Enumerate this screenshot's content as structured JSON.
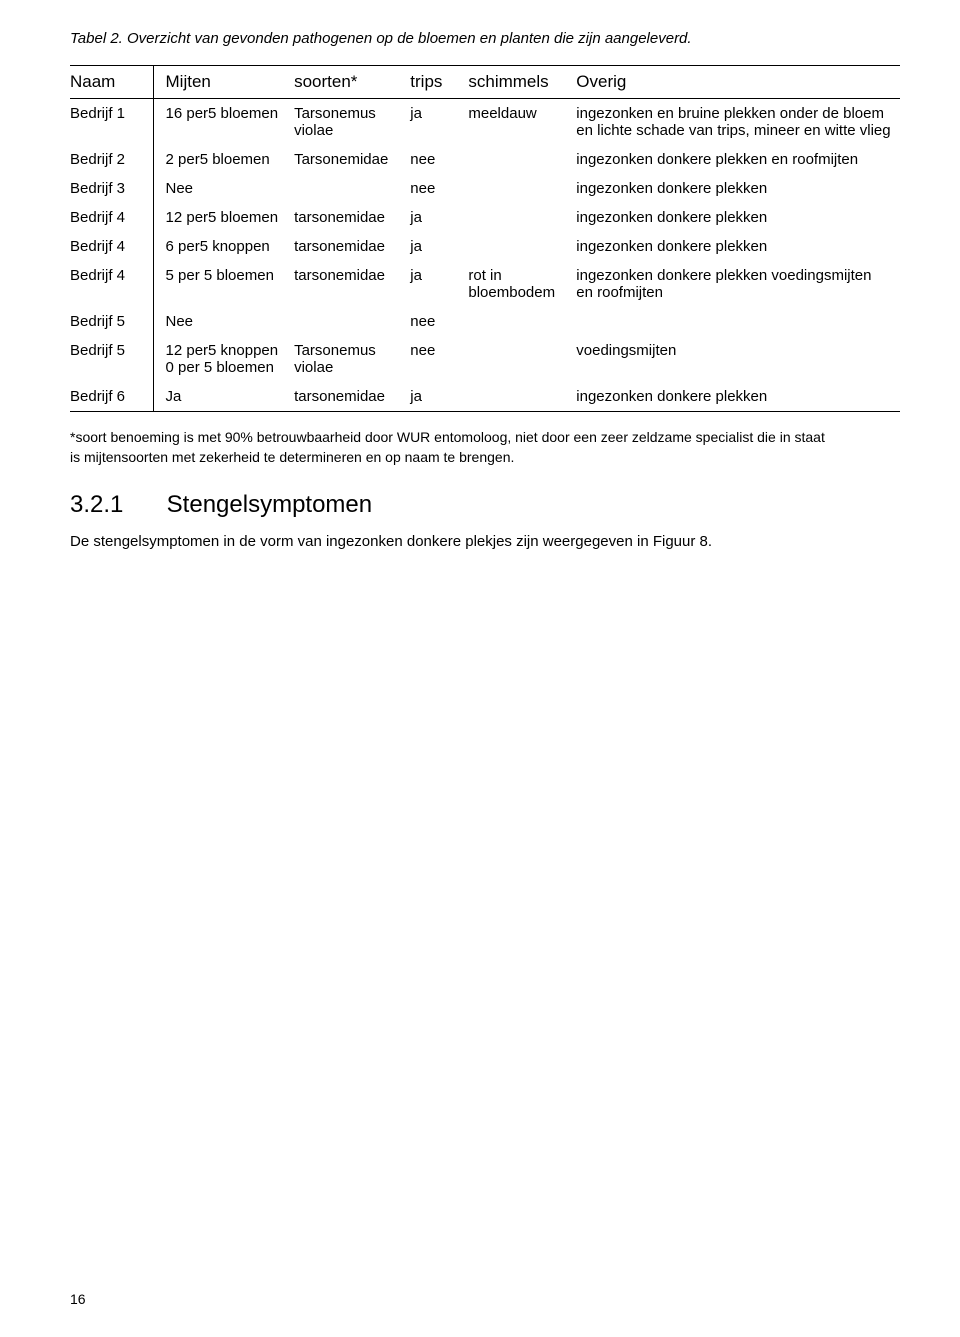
{
  "caption": "Tabel 2. Overzicht van gevonden pathogenen op de bloemen en planten die zijn aangeleverd.",
  "columns": [
    "Naam",
    "Mijten",
    "soorten*",
    "trips",
    "schimmels",
    "Overig"
  ],
  "rows": [
    {
      "naam": "Bedrijf 1",
      "mijten": "16 per5 bloemen",
      "soort": "Tarsonemus violae",
      "trips": "ja",
      "schimmels": "meeldauw",
      "overig": "ingezonken en bruine plekken onder de bloem en lichte schade van trips, mineer en witte vlieg"
    },
    {
      "naam": "Bedrijf 2",
      "mijten": "2 per5 bloemen",
      "soort": "Tarsonemidae",
      "trips": "nee",
      "schimmels": "",
      "overig": "ingezonken donkere plekken en roofmijten"
    },
    {
      "naam": "Bedrijf 3",
      "mijten": "Nee",
      "soort": "",
      "trips": "nee",
      "schimmels": "",
      "overig": "ingezonken donkere plekken"
    },
    {
      "naam": "Bedrijf 4",
      "mijten": "12 per5 bloemen",
      "soort": "tarsonemidae",
      "trips": "ja",
      "schimmels": "",
      "overig": "ingezonken donkere plekken"
    },
    {
      "naam": "Bedrijf 4",
      "mijten": "6 per5 knoppen",
      "soort": "tarsonemidae",
      "trips": "ja",
      "schimmels": "",
      "overig": "ingezonken donkere plekken"
    },
    {
      "naam": "Bedrijf 4",
      "mijten": "5 per 5 bloemen",
      "soort": "tarsonemidae",
      "trips": "ja",
      "schimmels": "rot in bloembodem",
      "overig": "ingezonken donkere plekken voedingsmijten en roofmijten"
    },
    {
      "naam": "Bedrijf 5",
      "mijten": "Nee",
      "soort": "",
      "trips": "nee",
      "schimmels": "",
      "overig": ""
    },
    {
      "naam": "Bedrijf 5",
      "mijten": "12 per5 knoppen 0 per 5 bloemen",
      "soort": "Tarsonemus violae",
      "trips": "nee",
      "schimmels": "",
      "overig": "voedingsmijten"
    },
    {
      "naam": "Bedrijf 6",
      "mijten": "Ja",
      "soort": "tarsonemidae",
      "trips": "ja",
      "schimmels": "",
      "overig": "ingezonken donkere plekken"
    }
  ],
  "footnote_line1": "*soort benoeming is met 90% betrouwbaarheid door WUR entomoloog, niet door een zeer zeldzame specialist die in staat",
  "footnote_line2": "is mijtensoorten met zekerheid te determineren en op naam te brengen.",
  "heading_number": "3.2.1",
  "heading_text": "Stengelsymptomen",
  "body_paragraph": "De stengelsymptomen in de vorm van ingezonken donkere plekjes zijn weergegeven in Figuur 8.",
  "page_number": "16"
}
